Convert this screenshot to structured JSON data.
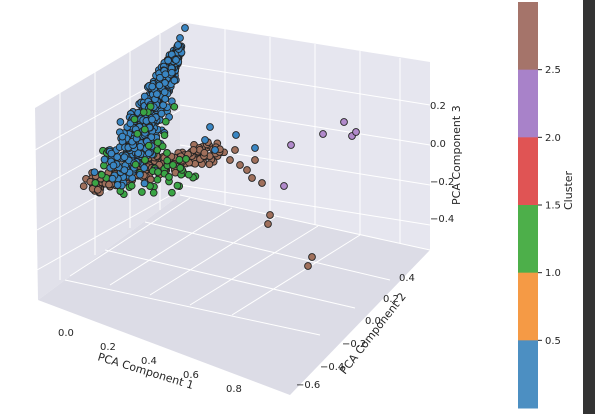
{
  "chart_data": {
    "type": "scatter",
    "dimensions": 3,
    "x_axis": {
      "label": "PCA Component 1",
      "ticks": [
        "0.0",
        "0.2",
        "0.4",
        "0.6",
        "0.8"
      ]
    },
    "y_axis": {
      "label": "PCA Component 2",
      "ticks": [
        "−0.6",
        "−0.4",
        "−0.2",
        "0.0",
        "0.2",
        "0.4"
      ]
    },
    "z_axis": {
      "label": "PCA Component 3",
      "ticks": [
        "−0.4",
        "−0.2",
        "0.0",
        "0.2"
      ]
    },
    "colorbar": {
      "label": "Cluster",
      "ticks": [
        "0.5",
        "1.0",
        "1.5",
        "2.0",
        "2.5"
      ],
      "colors": [
        "#4c8fc2",
        "#f59a45",
        "#4daf4a",
        "#e05454",
        "#a882c9",
        "#a5746a"
      ]
    },
    "clusters": [
      {
        "id": 0,
        "color": "#3a86c3",
        "approx_points": 2000
      },
      {
        "id": 1,
        "color": "#3aa545",
        "approx_points": 60
      },
      {
        "id": 2,
        "color": "#a0705c",
        "approx_points": 600
      },
      {
        "id": 3,
        "color": "#b18acb",
        "approx_points": 8
      }
    ],
    "background_color": "#eaeaf2",
    "grid": true
  }
}
